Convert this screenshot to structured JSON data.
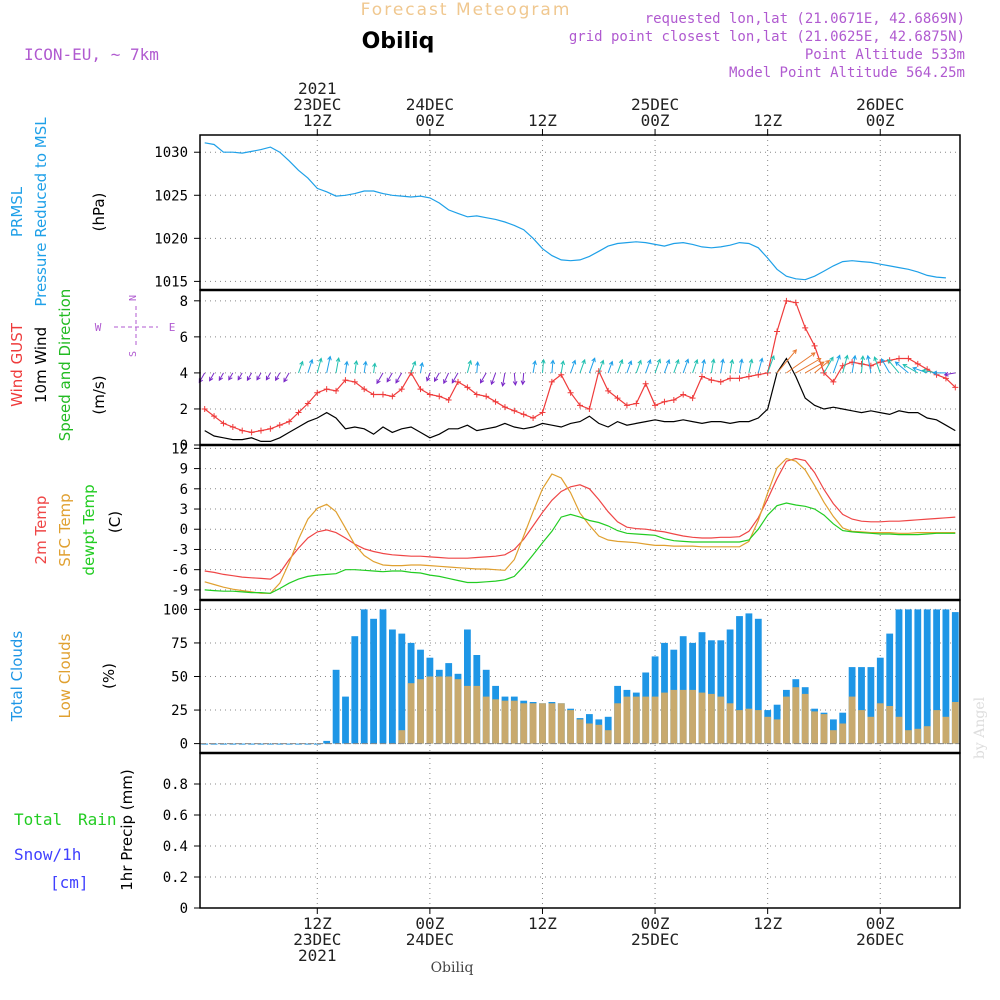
{
  "header": {
    "subtitle": "Forecast Meteogram",
    "station": "Obiliq",
    "model": "ICON-EU, ~ 7km",
    "info": [
      "requested lon,lat (21.0671E, 42.6869N)",
      "grid point closest lon,lat (21.0625E, 42.6875N)",
      "Point Altitude 533m",
      "Model Point Altitude 564.25m"
    ],
    "credit": "by Angel",
    "footer_station": "Obiliq"
  },
  "colors": {
    "pressure": "#1ea0e8",
    "gust": "#ef3b3b",
    "wind": "#000000",
    "dir_label": "#22bb22",
    "temp": "#ef4646",
    "sfc": "#e0a030",
    "dewpt": "#22cc22",
    "total_cloud": "#1e96e6",
    "low_cloud": "#c8aa6e",
    "rain": "#22cc22",
    "snow": "#4040ff",
    "purple": "#b05ad0",
    "grid": "#888888"
  },
  "time_axis": {
    "top_labels": [
      {
        "i": 12,
        "lines": [
          "2021",
          "23DEC",
          "12Z"
        ]
      },
      {
        "i": 24,
        "lines": [
          "24DEC",
          "00Z"
        ]
      },
      {
        "i": 36,
        "lines": [
          "12Z"
        ]
      },
      {
        "i": 48,
        "lines": [
          "25DEC",
          "00Z"
        ]
      },
      {
        "i": 60,
        "lines": [
          "12Z"
        ]
      },
      {
        "i": 72,
        "lines": [
          "26DEC",
          "00Z"
        ]
      }
    ],
    "bottom_labels": [
      {
        "i": 12,
        "lines": [
          "12Z",
          "23DEC",
          "2021"
        ]
      },
      {
        "i": 24,
        "lines": [
          "00Z",
          "24DEC"
        ]
      },
      {
        "i": 36,
        "lines": [
          "12Z"
        ]
      },
      {
        "i": 48,
        "lines": [
          "00Z",
          "25DEC"
        ]
      },
      {
        "i": 60,
        "lines": [
          "12Z"
        ]
      },
      {
        "i": 72,
        "lines": [
          "00Z",
          "26DEC"
        ]
      }
    ]
  },
  "chart_data": [
    {
      "type": "line",
      "title": "PRMSL Pressure Reduced to MSL",
      "left_labels": [
        "PRMSL",
        "Pressure Reduced to MSL"
      ],
      "ylabel": "(hPa)",
      "ylim": [
        1014,
        1032
      ],
      "yticks": [
        1015,
        1020,
        1025,
        1030
      ],
      "series": [
        {
          "name": "Pressure Reduced to MSL",
          "values": [
            1031.1,
            1030.9,
            1030.0,
            1030.0,
            1029.9,
            1030.1,
            1030.3,
            1030.6,
            1030.0,
            1029.0,
            1027.9,
            1027.0,
            1025.8,
            1025.4,
            1024.9,
            1025.0,
            1025.2,
            1025.5,
            1025.5,
            1025.2,
            1025.0,
            1024.9,
            1024.8,
            1024.9,
            1024.7,
            1024.1,
            1023.3,
            1022.9,
            1022.5,
            1022.6,
            1022.4,
            1022.2,
            1021.9,
            1021.5,
            1021.0,
            1020.0,
            1018.8,
            1018.0,
            1017.5,
            1017.4,
            1017.5,
            1017.9,
            1018.5,
            1019.1,
            1019.4,
            1019.5,
            1019.6,
            1019.5,
            1019.3,
            1019.1,
            1019.4,
            1019.5,
            1019.3,
            1019.0,
            1018.9,
            1019.0,
            1019.2,
            1019.5,
            1019.4,
            1018.9,
            1017.7,
            1016.4,
            1015.6,
            1015.3,
            1015.2,
            1015.6,
            1016.2,
            1016.8,
            1017.3,
            1017.4,
            1017.3,
            1017.2,
            1017.0,
            1016.8,
            1016.6,
            1016.4,
            1016.1,
            1015.7,
            1015.5,
            1015.4
          ]
        }
      ]
    },
    {
      "type": "line",
      "title": "Wind",
      "left_labels": [
        "Wind GUST",
        "10m Wind",
        "Speed and Direction"
      ],
      "ylabel": "(m/s)",
      "ylim": [
        0,
        8.6
      ],
      "yticks": [
        0,
        2,
        4,
        6,
        8
      ],
      "compass": {
        "n": "N",
        "s": "S",
        "w": "W",
        "e": "E"
      },
      "series": [
        {
          "name": "Wind GUST",
          "values": [
            2.0,
            1.6,
            1.2,
            1.0,
            0.8,
            0.7,
            0.8,
            0.9,
            1.1,
            1.3,
            1.8,
            2.3,
            2.9,
            3.1,
            3.0,
            3.6,
            3.5,
            3.1,
            2.8,
            2.8,
            2.7,
            3.1,
            4.0,
            3.1,
            2.8,
            2.7,
            2.5,
            3.5,
            3.2,
            2.8,
            2.7,
            2.4,
            2.1,
            1.9,
            1.7,
            1.5,
            1.8,
            3.5,
            3.9,
            2.9,
            2.2,
            2.0,
            4.1,
            3.0,
            2.6,
            2.2,
            2.3,
            3.4,
            2.2,
            2.4,
            2.5,
            2.8,
            2.6,
            3.8,
            3.6,
            3.5,
            3.7,
            3.7,
            3.8,
            3.9,
            4.0,
            6.3,
            8.0,
            7.9,
            6.5,
            5.5,
            4.0,
            3.5,
            4.4,
            4.6,
            4.5,
            4.4,
            4.6,
            4.7,
            4.8,
            4.8,
            4.5,
            4.2,
            3.9,
            3.7,
            3.2
          ]
        },
        {
          "name": "10m Wind",
          "values": [
            0.8,
            0.5,
            0.4,
            0.3,
            0.3,
            0.4,
            0.2,
            0.2,
            0.4,
            0.7,
            1.0,
            1.3,
            1.5,
            1.8,
            1.5,
            0.9,
            1.0,
            0.9,
            0.6,
            1.0,
            0.7,
            0.9,
            1.0,
            0.7,
            0.4,
            0.6,
            0.9,
            0.9,
            1.1,
            0.8,
            0.9,
            1.0,
            1.2,
            1.0,
            0.9,
            1.0,
            1.2,
            1.1,
            1.0,
            1.2,
            1.3,
            1.6,
            1.2,
            1.0,
            1.3,
            1.1,
            1.2,
            1.3,
            1.4,
            1.3,
            1.3,
            1.4,
            1.3,
            1.2,
            1.3,
            1.3,
            1.2,
            1.3,
            1.3,
            1.5,
            2.0,
            4.0,
            4.8,
            3.8,
            2.6,
            2.2,
            2.0,
            2.1,
            2.0,
            1.9,
            1.8,
            1.9,
            1.8,
            1.7,
            1.9,
            1.8,
            1.8,
            1.5,
            1.4,
            1.1,
            0.8
          ]
        },
        {
          "name": "Direction arrow angle (deg, 0=up)",
          "values": [
            -150,
            -150,
            -150,
            -150,
            -150,
            -150,
            -150,
            -150,
            -150,
            -150,
            20,
            18,
            15,
            12,
            10,
            8,
            8,
            8,
            8,
            -150,
            -150,
            -150,
            20,
            10,
            -160,
            -150,
            -155,
            -150,
            15,
            5,
            -150,
            -160,
            -170,
            175,
            -175,
            10,
            5,
            5,
            10,
            20,
            20,
            20,
            20,
            20,
            20,
            20,
            20,
            20,
            20,
            20,
            20,
            20,
            20,
            10,
            10,
            10,
            10,
            10,
            12,
            15,
            20,
            40,
            55,
            60,
            60,
            50,
            30,
            20,
            15,
            10,
            5,
            -10,
            -20,
            -30,
            -40,
            -50,
            -60,
            -70,
            -80,
            -90,
            -100
          ]
        }
      ]
    },
    {
      "type": "line",
      "title": "Temperature",
      "left_labels": [
        "2m Temp",
        "SFC Temp",
        "dewpt Temp"
      ],
      "ylabel": "(C)",
      "ylim": [
        -10.5,
        12.5
      ],
      "yticks": [
        -9,
        -6,
        -3,
        0,
        3,
        6,
        9,
        12
      ],
      "series": [
        {
          "name": "2m Temp",
          "values": [
            -6.2,
            -6.4,
            -6.7,
            -6.9,
            -7.1,
            -7.2,
            -7.3,
            -7.4,
            -6.5,
            -4.5,
            -2.8,
            -1.3,
            -0.4,
            -0.1,
            -0.5,
            -1.3,
            -2.2,
            -2.9,
            -3.3,
            -3.6,
            -3.8,
            -3.9,
            -4.0,
            -4.0,
            -4.1,
            -4.2,
            -4.3,
            -4.3,
            -4.3,
            -4.2,
            -4.1,
            -4.0,
            -3.8,
            -3.0,
            -1.5,
            0.5,
            2.5,
            4.3,
            5.6,
            6.3,
            6.6,
            6.0,
            4.4,
            2.6,
            1.1,
            0.3,
            0.1,
            0.0,
            -0.2,
            -0.4,
            -0.7,
            -1.0,
            -1.2,
            -1.3,
            -1.3,
            -1.2,
            -1.2,
            -1.1,
            -0.3,
            1.7,
            4.5,
            7.5,
            10.1,
            10.5,
            10.2,
            8.4,
            5.9,
            3.8,
            2.2,
            1.5,
            1.2,
            1.1,
            1.1,
            1.2,
            1.2,
            1.3,
            1.4,
            1.5,
            1.6,
            1.7,
            1.8
          ]
        },
        {
          "name": "SFC Temp",
          "values": [
            -7.8,
            -8.2,
            -8.6,
            -8.9,
            -9.1,
            -9.3,
            -9.5,
            -9.5,
            -8.0,
            -5.0,
            -1.5,
            1.5,
            3.1,
            3.7,
            2.6,
            0.2,
            -2.3,
            -3.9,
            -4.8,
            -5.3,
            -5.4,
            -5.4,
            -5.3,
            -5.3,
            -5.4,
            -5.5,
            -5.6,
            -5.7,
            -5.8,
            -5.9,
            -5.9,
            -6.0,
            -6.1,
            -4.5,
            -1.0,
            2.6,
            6.0,
            8.2,
            7.6,
            5.4,
            2.4,
            0.6,
            -1.0,
            -1.6,
            -1.8,
            -1.9,
            -2.0,
            -2.2,
            -2.4,
            -2.4,
            -2.5,
            -2.5,
            -2.5,
            -2.6,
            -2.6,
            -2.6,
            -2.6,
            -2.6,
            -1.8,
            1.3,
            5.4,
            9.1,
            10.5,
            10.1,
            8.8,
            6.5,
            4.0,
            1.9,
            0.2,
            -0.3,
            -0.4,
            -0.5,
            -0.5,
            -0.5,
            -0.6,
            -0.6,
            -0.5,
            -0.5,
            -0.5,
            -0.5,
            -0.5
          ]
        },
        {
          "name": "dewpt Temp",
          "values": [
            -9.0,
            -9.1,
            -9.2,
            -9.2,
            -9.3,
            -9.4,
            -9.4,
            -9.5,
            -8.8,
            -8.0,
            -7.4,
            -7.0,
            -6.8,
            -6.7,
            -6.6,
            -6.0,
            -6.0,
            -6.1,
            -6.2,
            -6.3,
            -6.2,
            -6.2,
            -6.4,
            -6.5,
            -6.8,
            -7.0,
            -7.3,
            -7.6,
            -7.9,
            -7.9,
            -7.8,
            -7.7,
            -7.5,
            -7.0,
            -5.5,
            -3.8,
            -2.0,
            -0.3,
            1.8,
            2.2,
            1.8,
            1.3,
            1.0,
            0.5,
            -0.2,
            -0.6,
            -0.7,
            -0.8,
            -0.9,
            -1.4,
            -1.7,
            -1.8,
            -1.9,
            -1.9,
            -1.9,
            -1.9,
            -1.9,
            -1.9,
            -1.6,
            0.0,
            2.1,
            3.5,
            3.9,
            3.6,
            3.4,
            3.0,
            2.1,
            0.8,
            -0.2,
            -0.4,
            -0.5,
            -0.6,
            -0.7,
            -0.7,
            -0.8,
            -0.8,
            -0.8,
            -0.7,
            -0.6,
            -0.6,
            -0.6
          ]
        }
      ]
    },
    {
      "type": "bar",
      "title": "Clouds",
      "left_labels": [
        "Total Clouds",
        "Low Clouds"
      ],
      "ylabel": "(%)",
      "ylim": [
        -7,
        107
      ],
      "yticks": [
        0,
        25,
        50,
        75,
        100
      ],
      "series": [
        {
          "name": "Total Clouds",
          "values": [
            0,
            0,
            0,
            0,
            0,
            0,
            0,
            0,
            0,
            0,
            0,
            0,
            0,
            2,
            55,
            35,
            80,
            100,
            93,
            100,
            85,
            82,
            75,
            70,
            64,
            55,
            60,
            52,
            85,
            66,
            55,
            43,
            35,
            35,
            32,
            31,
            30,
            31,
            30,
            26,
            19,
            22,
            18,
            20,
            43,
            40,
            38,
            53,
            65,
            75,
            70,
            80,
            75,
            83,
            77,
            77,
            85,
            95,
            97,
            93,
            25,
            29,
            40,
            48,
            42,
            26,
            23,
            18,
            23,
            57,
            57,
            57,
            64,
            82,
            100,
            100,
            100,
            100,
            100,
            100,
            98
          ]
        },
        {
          "name": "Low Clouds",
          "values": [
            0,
            0,
            0,
            0,
            0,
            0,
            0,
            0,
            0,
            0,
            0,
            0,
            0,
            0,
            0,
            0,
            0,
            0,
            0,
            0,
            0,
            10,
            45,
            48,
            50,
            50,
            50,
            48,
            43,
            43,
            35,
            33,
            32,
            32,
            30,
            30,
            30,
            30,
            30,
            25,
            18,
            15,
            14,
            10,
            30,
            35,
            35,
            35,
            35,
            38,
            40,
            40,
            40,
            38,
            37,
            35,
            30,
            25,
            26,
            25,
            20,
            18,
            35,
            42,
            37,
            24,
            22,
            10,
            15,
            35,
            25,
            20,
            30,
            28,
            20,
            10,
            11,
            13,
            25,
            20,
            31
          ]
        }
      ]
    },
    {
      "type": "bar",
      "title": "Precipitation",
      "left_labels": [
        "Total",
        "Rain",
        "Snow/1h",
        "[cm]"
      ],
      "ylabel": "1hr Precip (mm)",
      "ylim": [
        0,
        1.0
      ],
      "yticks": [
        0,
        0.2,
        0.4,
        0.6,
        0.8
      ],
      "series": [
        {
          "name": "Total Rain",
          "values": [
            0,
            0,
            0,
            0,
            0,
            0,
            0,
            0,
            0,
            0,
            0,
            0,
            0,
            0,
            0,
            0,
            0,
            0,
            0,
            0,
            0,
            0,
            0,
            0,
            0,
            0,
            0,
            0,
            0,
            0,
            0,
            0,
            0,
            0,
            0,
            0,
            0,
            0,
            0,
            0,
            0,
            0,
            0,
            0,
            0,
            0,
            0,
            0,
            0,
            0,
            0,
            0,
            0,
            0,
            0,
            0,
            0,
            0,
            0,
            0,
            0,
            0,
            0,
            0,
            0,
            0,
            0,
            0,
            0,
            0,
            0,
            0,
            0,
            0,
            0,
            0,
            0,
            0,
            0,
            0,
            0
          ]
        }
      ]
    }
  ]
}
